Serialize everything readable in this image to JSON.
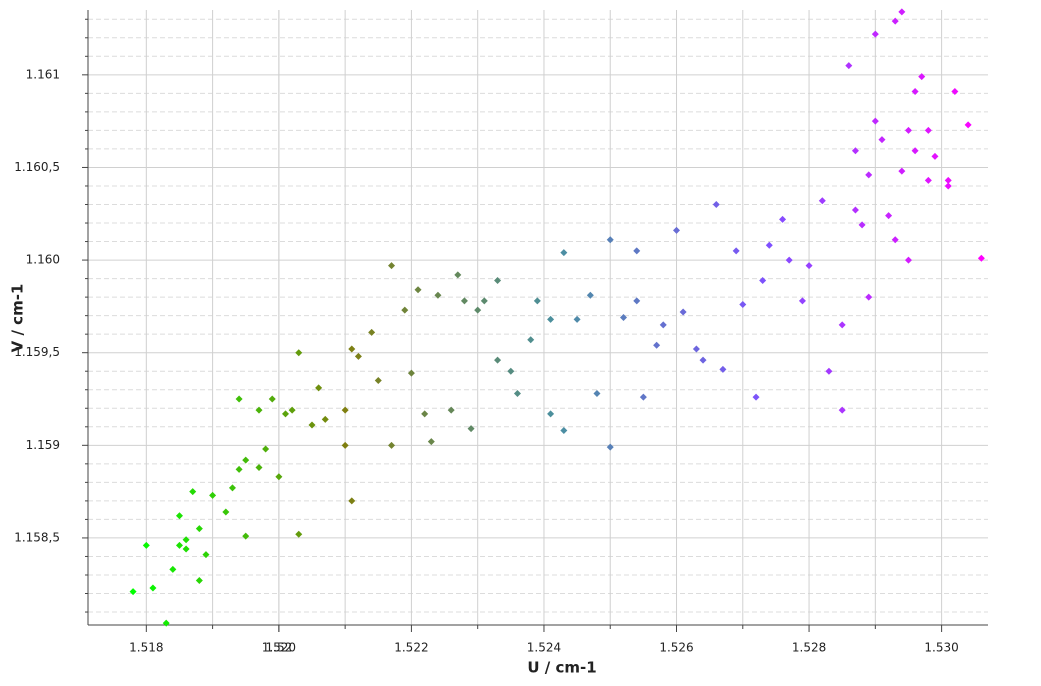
{
  "chart_data": {
    "type": "scatter",
    "x_label": "U / cm-1",
    "y_label": "V / cm-1",
    "xlim": [
      1.51712,
      1.5307
    ],
    "ylim": [
      1.15803,
      1.16135
    ],
    "xticks": [
      1.518,
      1.52,
      {
        "value": 1.52,
        "label": "1.520"
      },
      1.522,
      1.524,
      1.526,
      1.528,
      {
        "value": 1.53,
        "label": "1.530"
      }
    ],
    "x_minor_ticks": [
      1.519,
      1.521,
      1.523,
      1.525,
      1.527,
      1.529
    ],
    "yticks": [
      {
        "value": 1.1585,
        "label": "1.158,5"
      },
      1.159,
      {
        "value": 1.1595,
        "label": "1.159,5"
      },
      {
        "value": 1.16,
        "label": "1.160"
      },
      {
        "value": 1.1605,
        "label": "1.160,5"
      },
      1.161
    ],
    "y_minor_ticks": [
      1.1581,
      1.1582,
      1.1583,
      1.1584,
      1.1586,
      1.1587,
      1.1588,
      1.1589,
      1.1591,
      1.1592,
      1.1593,
      1.1594,
      1.1596,
      1.1597,
      1.1598,
      1.1599,
      1.1601,
      1.1602,
      1.1603,
      1.1604,
      1.1606,
      1.1607,
      1.1608,
      1.1609,
      1.1611,
      1.1612,
      1.1613
    ],
    "grid": true,
    "colormap": [
      "#00ff00",
      "#7f7f10",
      "#4a90a0",
      "#7f50ff",
      "#ff00ff"
    ],
    "x": [
      1.5178,
      1.518,
      1.5181,
      1.5183,
      1.5184,
      1.5185,
      1.5185,
      1.5186,
      1.5186,
      1.5187,
      1.5188,
      1.5188,
      1.5189,
      1.519,
      1.5192,
      1.5193,
      1.5194,
      1.5195,
      1.5195,
      1.5194,
      1.5197,
      1.5197,
      1.5198,
      1.5199,
      1.52,
      1.5201,
      1.5202,
      1.5203,
      1.5203,
      1.5205,
      1.5206,
      1.5207,
      1.521,
      1.521,
      1.5211,
      1.5211,
      1.5212,
      1.5214,
      1.5215,
      1.5217,
      1.5217,
      1.5219,
      1.522,
      1.5221,
      1.5222,
      1.5223,
      1.5224,
      1.5226,
      1.5227,
      1.5228,
      1.5229,
      1.523,
      1.5231,
      1.5233,
      1.5233,
      1.5235,
      1.5236,
      1.5238,
      1.5239,
      1.5241,
      1.5241,
      1.5243,
      1.5243,
      1.5245,
      1.5247,
      1.5248,
      1.525,
      1.525,
      1.5252,
      1.5254,
      1.5254,
      1.5255,
      1.5257,
      1.5258,
      1.526,
      1.5261,
      1.5263,
      1.5264,
      1.5266,
      1.5267,
      1.5269,
      1.527,
      1.5272,
      1.5273,
      1.5274,
      1.5276,
      1.5277,
      1.5279,
      1.528,
      1.5282,
      1.5283,
      1.5285,
      1.5286,
      1.5285,
      1.5287,
      1.5287,
      1.5289,
      1.5289,
      1.529,
      1.529,
      1.5291,
      1.5293,
      1.5293,
      1.5294,
      1.5295,
      1.5295,
      1.5296,
      1.5297,
      1.5298,
      1.5299,
      1.5301,
      1.5302,
      1.5304,
      1.5306,
      1.5292,
      1.5296,
      1.5298,
      1.5301,
      1.5294,
      1.5288
    ],
    "values": [
      1.15821,
      1.15846,
      1.15823,
      1.15804,
      1.15833,
      1.15846,
      1.15862,
      1.15849,
      1.15844,
      1.15875,
      1.15827,
      1.15855,
      1.15841,
      1.15873,
      1.15864,
      1.15877,
      1.15887,
      1.15892,
      1.15851,
      1.15925,
      1.15888,
      1.15919,
      1.15898,
      1.15925,
      1.15883,
      1.15917,
      1.15919,
      1.1595,
      1.15852,
      1.15911,
      1.15931,
      1.15914,
      1.15919,
      1.159,
      1.15952,
      1.1587,
      1.15948,
      1.15961,
      1.15935,
      1.15997,
      1.159,
      1.15973,
      1.15939,
      1.15984,
      1.15917,
      1.15902,
      1.15981,
      1.15919,
      1.15992,
      1.15978,
      1.15909,
      1.15973,
      1.15978,
      1.15946,
      1.15989,
      1.1594,
      1.15928,
      1.15957,
      1.15978,
      1.15968,
      1.15917,
      1.16004,
      1.15908,
      1.15968,
      1.15981,
      1.15928,
      1.15899,
      1.16011,
      1.15969,
      1.15978,
      1.16005,
      1.15926,
      1.15954,
      1.15965,
      1.16016,
      1.15972,
      1.15952,
      1.15946,
      1.1603,
      1.15941,
      1.16005,
      1.15976,
      1.15926,
      1.15989,
      1.16008,
      1.16022,
      1.16,
      1.15978,
      1.15997,
      1.16032,
      1.1594,
      1.15919,
      1.16105,
      1.15965,
      1.16027,
      1.16059,
      1.16046,
      1.1598,
      1.16075,
      1.16122,
      1.16065,
      1.16011,
      1.16129,
      1.16134,
      1.1607,
      1.16,
      1.16091,
      1.16099,
      1.16043,
      1.16056,
      1.16043,
      1.16091,
      1.16073,
      1.16001,
      1.16024,
      1.16059,
      1.1607,
      1.1604,
      1.16048,
      1.16019
    ]
  }
}
